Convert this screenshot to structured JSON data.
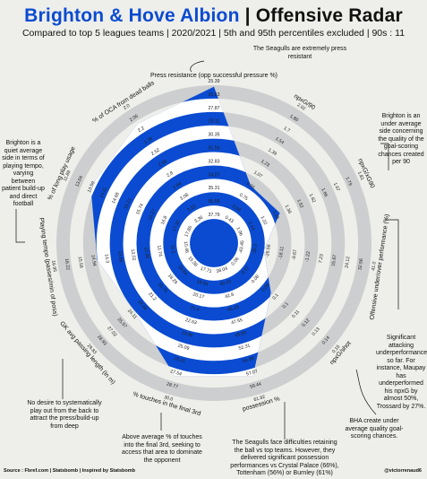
{
  "header": {
    "team": "Brighton & Hove Albion",
    "separator": " | ",
    "title_rest": "Offensive Radar",
    "subtitle": "Compared to top 5 leagues teams | 2020/2021 | 5th and 95th percentiles excluded | 90s : 11"
  },
  "annotations": {
    "press": "The Seagulls are extremely press resistant",
    "long_play": "Brighton is a quiet average side in terms of playing tempo, varying between patient build-up and direct football",
    "npxg": "Brighton is an under average side concerning the quality of the goal-scoring chances created per 90",
    "underperf": "Significant attacking underperformance so far. For instance, Maupay has underperformed his npxG by almost 50%, Trossard by 27%.",
    "chance_quality": "BHA create under average quality goal-scoring chances.",
    "possession": "The Seagulls face difficulties retaining the ball vs top teams. However, they delivered significant possession performances vs Crystal Palace (66%), Tottenham (56%) or Burnley (61%)",
    "final_third": "Above average % of touches into the final 3rd, seeking to access that area to dominate the opponent",
    "passing_length": "No desire to systematically play out from the back to attract the press/build-up from deep"
  },
  "footer": {
    "source": "Source : Fbref.com | Statsbomb | Inspired by Statsbomb",
    "handle": "@victorrenaud6"
  },
  "colors": {
    "accent": "#0a4bd1",
    "ring_gray": "#cdcecf",
    "background": "#eeeeea"
  },
  "chart_data": {
    "type": "radar",
    "title": "Brighton & Hove Albion | Offensive Radar",
    "subtitle": "Compared to top 5 leagues teams | 2020/2021 | 5th and 95th percentiles excluded | 90s : 11",
    "axes": [
      {
        "name": "Press resistance (opp successful pressure %)",
        "ticks": [
          "25.39",
          "26.63",
          "27.87",
          "29.11",
          "30.35",
          "31.59",
          "32.83",
          "34.07",
          "35.31",
          "36.55",
          "37.79"
        ],
        "value_fraction": 0.99
      },
      {
        "name": "npxG/90",
        "ticks": [
          "2.02",
          "1.86",
          "1.7",
          "1.54",
          "1.39",
          "1.23",
          "1.07",
          "0.91",
          "0.75",
          "0.59",
          "0.43"
        ],
        "value_fraction": 0.39
      },
      {
        "name": "npxG/xG90",
        "ticks": [
          "1.81",
          "1.79",
          "1.67",
          "1.66",
          "1.62",
          "1.52",
          "1.36",
          "1.29",
          "1.22",
          "1.14",
          "1.06"
        ],
        "value_fraction": 0.42
      },
      {
        "name": "Offensive under/over performance (%)",
        "ticks": [
          "41.0",
          "32.56",
          "24.12",
          "15.67",
          "7.23",
          "-1.22",
          "-9.67",
          "-18.11",
          "-26.56",
          "-35.0",
          "-43.45"
        ],
        "value_fraction": 0.27
      },
      {
        "name": "npxG/shot",
        "ticks": [
          "0.15",
          "0.14",
          "0.13",
          "0.12",
          "0.11",
          "0.1",
          "0.1",
          "0.09",
          "0.08",
          "0.07",
          "0.06"
        ],
        "value_fraction": 0.44
      },
      {
        "name": "possession %",
        "ticks": [
          "61.82",
          "59.44",
          "57.07",
          "54.69",
          "52.31",
          "49.93",
          "47.55",
          "45.18",
          "42.8",
          "40.42",
          "38.04"
        ],
        "value_fraction": 0.87
      },
      {
        "name": "% touches in the final 3rd",
        "ticks": [
          "30.0",
          "28.77",
          "27.54",
          "26.31",
          "25.09",
          "23.86",
          "22.63",
          "21.4",
          "20.17",
          "18.94",
          "17.71"
        ],
        "value_fraction": 0.87
      },
      {
        "name": "GK avg passing length (in m)",
        "ticks": [
          "29.83",
          "28.93",
          "27.02",
          "25.57",
          "24.11",
          "22.66",
          "21.2",
          "19.75",
          "18.29",
          "16.84",
          "15.38"
        ],
        "value_fraction": 0.64
      },
      {
        "name": "Playing tempo (passes/min of poss)",
        "ticks": [
          "16.95",
          "16.22",
          "15.58",
          "14.94",
          "14.3",
          "13.66",
          "13.02",
          "12.38",
          "11.74",
          "11.1",
          "10.46"
        ],
        "value_fraction": 0.73
      },
      {
        "name": "% of long play usage",
        "ticks": [
          "11.89",
          "13.04",
          "13.59",
          "14.11",
          "14.68",
          "15.21",
          "15.74",
          "16.27",
          "16.8",
          "17.33",
          "17.86"
        ],
        "value_fraction": 0.85
      },
      {
        "name": "% of OCA from dead balls",
        "ticks": [
          "2.0",
          "2.06",
          "2.2",
          "2.38",
          "2.52",
          "2.66",
          "2.8",
          "2.94",
          "3.08",
          "3.22",
          "3.36"
        ],
        "value_fraction": 0.89
      }
    ]
  }
}
